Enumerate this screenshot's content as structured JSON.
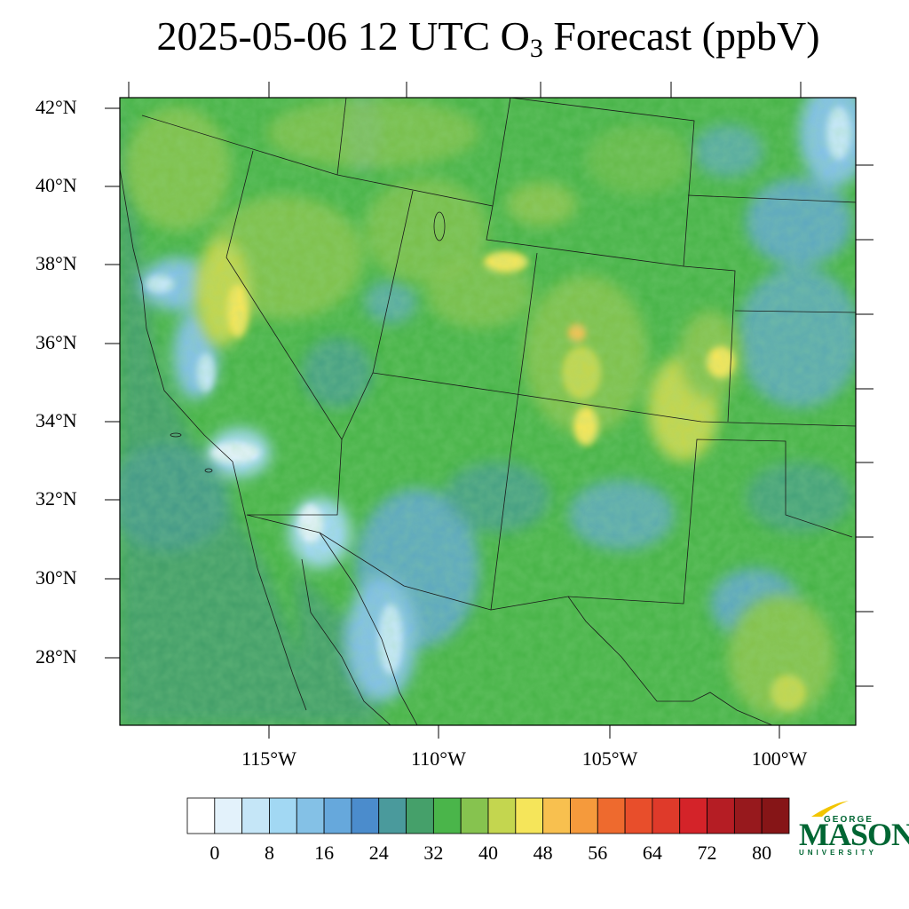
{
  "title": {
    "prefix": "2025-05-06 12 UTC O",
    "subscript": "3",
    "suffix": " Forecast (ppbV)"
  },
  "map": {
    "region": "Southwestern United States and northern Mexico",
    "lat_labels": [
      "42°N",
      "40°N",
      "38°N",
      "36°N",
      "34°N",
      "32°N",
      "30°N",
      "28°N"
    ],
    "lon_labels": [
      "115°W",
      "110°W",
      "105°W",
      "100°W"
    ],
    "lat_range": [
      26.4,
      42.4
    ],
    "lon_range": [
      -119.4,
      -98.2
    ]
  },
  "colorbar": {
    "tick_labels": [
      "0",
      "8",
      "16",
      "24",
      "32",
      "40",
      "48",
      "56",
      "64",
      "72",
      "80"
    ],
    "levels": [
      0,
      4,
      8,
      12,
      16,
      20,
      24,
      28,
      32,
      36,
      40,
      44,
      48,
      52,
      56,
      60,
      64,
      68,
      72,
      76,
      80
    ],
    "colors": [
      "#ffffff",
      "#e3f2fb",
      "#c5e6f7",
      "#a2d8f3",
      "#84c1e6",
      "#66a8dc",
      "#4b8ccc",
      "#4a9a9c",
      "#45a06a",
      "#4ab54a",
      "#86c34f",
      "#c4d64f",
      "#f5e55a",
      "#f8c04f",
      "#f59a3c",
      "#ee6a2e",
      "#e84e2b",
      "#df3a2a",
      "#d42329",
      "#b51d24",
      "#97191d",
      "#861517"
    ]
  },
  "logo": {
    "top": "GEORGE",
    "main": "MASON",
    "sub": "UNIVERSITY",
    "color": "#006633",
    "accent": "#f2c500"
  }
}
